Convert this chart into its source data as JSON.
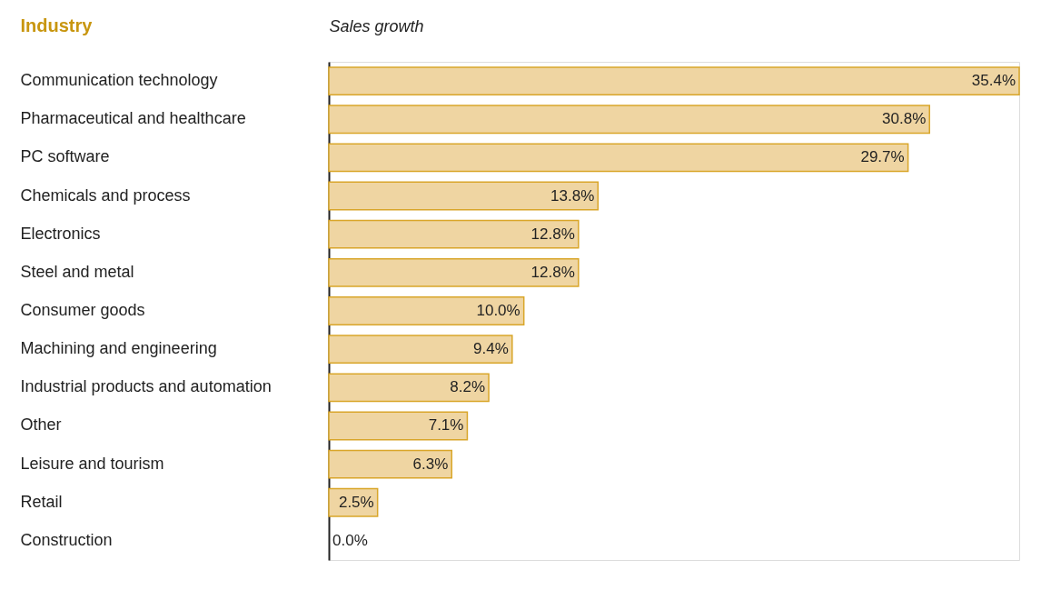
{
  "chart_data": {
    "type": "bar",
    "orientation": "horizontal",
    "ylabel": "Industry",
    "xlabel": "Sales growth",
    "categories": [
      "Communication technology",
      "Pharmaceutical and healthcare",
      "PC software",
      "Chemicals and process",
      "Electronics",
      "Steel and metal",
      "Consumer goods",
      "Machining and engineering",
      "Industrial products and automation",
      "Other",
      "Leisure and tourism",
      "Retail",
      "Construction"
    ],
    "values": [
      35.4,
      30.8,
      29.7,
      13.8,
      12.8,
      12.8,
      10.0,
      9.4,
      8.2,
      7.1,
      6.3,
      2.5,
      0.0
    ],
    "value_labels": [
      "35.4%",
      "30.8%",
      "29.7%",
      "13.8%",
      "12.8%",
      "12.8%",
      "10.0%",
      "9.4%",
      "8.2%",
      "7.1%",
      "6.3%",
      "2.5%",
      "0.0%"
    ],
    "color": "#efd5a2",
    "xlim": [
      0,
      35.4
    ],
    "grid": false,
    "tick_labels": "y"
  }
}
